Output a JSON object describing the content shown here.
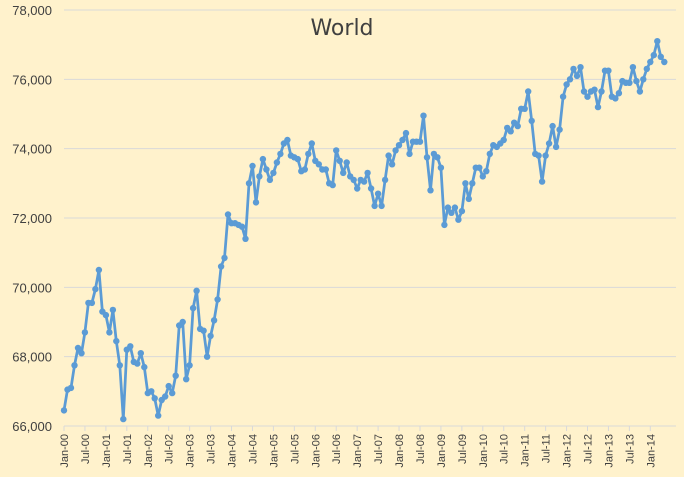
{
  "chart_data": {
    "type": "line",
    "title": "World",
    "xlabel": "",
    "ylabel": "",
    "ylim": [
      66000,
      78000
    ],
    "y_ticks": [
      66000,
      68000,
      70000,
      72000,
      74000,
      76000,
      78000
    ],
    "y_tick_labels": [
      "66,000",
      "68,000",
      "70,000",
      "72,000",
      "74,000",
      "76,000",
      "78,000"
    ],
    "x_tick_labels": [
      "Jan-00",
      "Jul-00",
      "Jan-01",
      "Jul-01",
      "Jan-02",
      "Jul-02",
      "Jan-03",
      "Jul-03",
      "Jan-04",
      "Jul-04",
      "Jan-05",
      "Jul-05",
      "Jan-06",
      "Jul-06",
      "Jan-07",
      "Jul-07",
      "Jan-08",
      "Jul-08",
      "Jan-09",
      "Jul-09",
      "Jan-10",
      "Jul-10",
      "Jan-11",
      "Jul-11",
      "Jan-12",
      "Jul-12",
      "Jan-13",
      "Jul-13",
      "Jan-14"
    ],
    "x_tick_interval_months": 6,
    "grid": true,
    "legend": "none",
    "line_color": "#5B9BD5",
    "background_color": "#FFF2CC",
    "series": [
      {
        "start": "Jan-00",
        "values": [
          66450,
          67050,
          67100,
          67750,
          68250,
          68100,
          68700,
          69550,
          69550,
          69950,
          70500,
          69300,
          69200,
          68700,
          69350,
          68450,
          67750,
          66200,
          68200,
          68300,
          67850,
          67800,
          68100,
          67700,
          66950,
          67000,
          66800,
          66300,
          66750,
          66850,
          67150,
          66950,
          67450,
          68900,
          69000,
          67350,
          67750,
          69400,
          69900,
          68800,
          68750,
          68000,
          68600,
          69050,
          69650,
          70600,
          70850,
          72100,
          71850,
          71850,
          71800,
          71750,
          71400,
          73000,
          73500,
          72450,
          73200,
          73700,
          73400,
          73100,
          73300,
          73600,
          73850,
          74150,
          74250,
          73800,
          73750,
          73700,
          73350,
          73400,
          73850,
          74150,
          73650,
          73550,
          73400,
          73400,
          73000,
          72950,
          73950,
          73650,
          73300,
          73600,
          73200,
          73100,
          72850,
          73100,
          73050,
          73300,
          72850,
          72350,
          72700,
          72350,
          73100,
          73800,
          73550,
          73950,
          74100,
          74250,
          74450,
          73850,
          74200,
          74200,
          74200,
          74950,
          73750,
          72800,
          73850,
          73750,
          73450,
          71800,
          72300,
          72150,
          72300,
          71950,
          72200,
          73000,
          72550,
          73000,
          73450,
          73450,
          73200,
          73350,
          73850,
          74100,
          74050,
          74150,
          74250,
          74600,
          74500,
          74750,
          74650,
          75150,
          75150,
          75650,
          74800,
          73850,
          73800,
          73050,
          73800,
          74150,
          74650,
          74050,
          74550,
          75500,
          75850,
          76000,
          76300,
          76100,
          76350,
          75650,
          75500,
          75650,
          75700,
          75200,
          75650,
          76250,
          76250,
          75500,
          75450,
          75600,
          75950,
          75900,
          75900,
          76350,
          75950,
          75650,
          76000,
          76300,
          76500,
          76700,
          77100,
          76650,
          76500
        ]
      }
    ]
  }
}
